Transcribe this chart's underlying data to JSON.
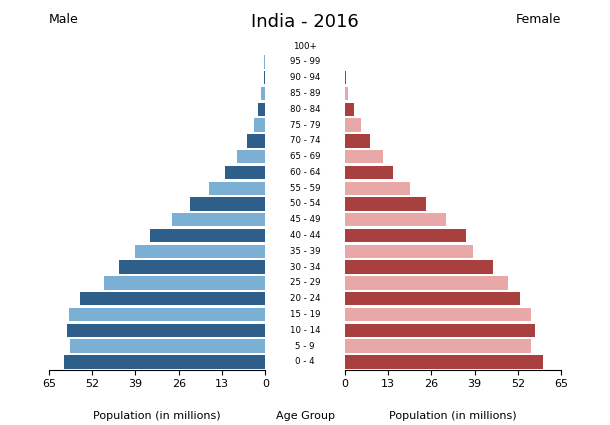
{
  "title": "India - 2016",
  "age_groups": [
    "0 - 4",
    "5 - 9",
    "10 - 14",
    "15 - 19",
    "20 - 24",
    "25 - 29",
    "30 - 34",
    "35 - 39",
    "40 - 44",
    "45 - 49",
    "50 - 54",
    "55 - 59",
    "60 - 64",
    "65 - 69",
    "70 - 74",
    "75 - 79",
    "80 - 84",
    "85 - 89",
    "90 - 94",
    "95 - 99",
    "100+"
  ],
  "male": [
    60.5,
    58.5,
    59.5,
    59.0,
    55.5,
    48.5,
    44.0,
    39.0,
    34.5,
    28.0,
    22.5,
    17.0,
    12.0,
    8.5,
    5.5,
    3.5,
    2.3,
    1.2,
    0.5,
    0.3,
    0.1
  ],
  "female": [
    59.5,
    56.0,
    57.0,
    56.0,
    52.5,
    49.0,
    44.5,
    38.5,
    36.5,
    30.5,
    24.5,
    19.5,
    14.5,
    11.5,
    7.5,
    4.8,
    2.8,
    1.0,
    0.4,
    0.2,
    0.1
  ],
  "male_dark": "#2e5f8a",
  "male_light": "#7bafd4",
  "female_dark": "#a84040",
  "female_light": "#e8a8a8",
  "xlabel_left": "Population (in millions)",
  "xlabel_center": "Age Group",
  "xlabel_right": "Population (in millions)",
  "label_male": "Male",
  "label_female": "Female",
  "xlim": 65,
  "xticks": [
    0,
    13,
    26,
    39,
    52,
    65
  ],
  "background_color": "#ffffff"
}
